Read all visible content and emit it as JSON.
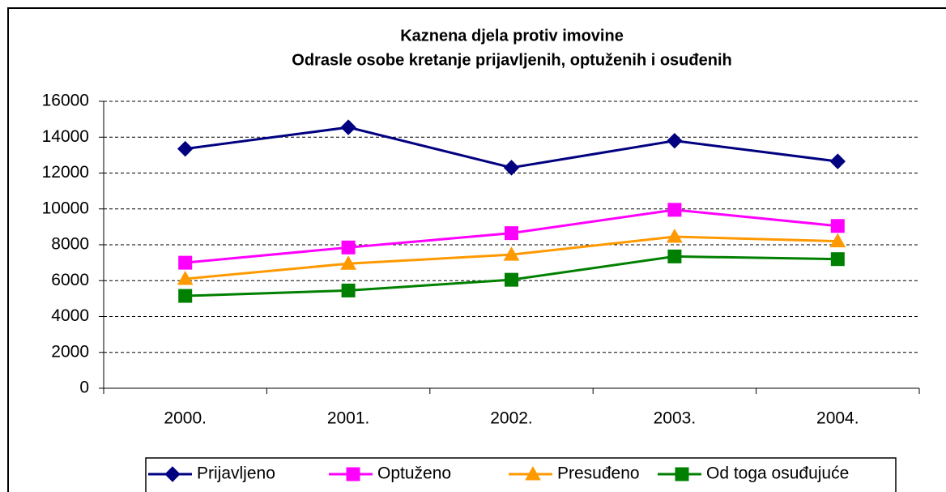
{
  "chart_data": {
    "type": "line",
    "title": "Kaznena djela protiv imovine",
    "subtitle": "Odrasle osobe kretanje prijavljenih, optuženih i osuđenih",
    "categories": [
      "2000.",
      "2001.",
      "2002.",
      "2003.",
      "2004."
    ],
    "series": [
      {
        "name": "Prijavljeno",
        "color": "#000080",
        "marker": "diamond",
        "values": [
          13350,
          14550,
          12300,
          13800,
          12650
        ]
      },
      {
        "name": "Optuženo",
        "color": "#ff00ff",
        "marker": "square",
        "values": [
          7000,
          7850,
          8650,
          9950,
          9050
        ]
      },
      {
        "name": "Presuđeno",
        "color": "#ff9900",
        "marker": "triangle",
        "values": [
          6100,
          6950,
          7450,
          8450,
          8200
        ]
      },
      {
        "name": "Od toga osuđujuće",
        "color": "#008000",
        "marker": "square",
        "values": [
          5150,
          5450,
          6050,
          7350,
          7200
        ]
      }
    ],
    "ylim": [
      0,
      16000
    ],
    "yticks": [
      0,
      2000,
      4000,
      6000,
      8000,
      10000,
      12000,
      14000,
      16000
    ],
    "grid": true,
    "legend": "bottom"
  }
}
